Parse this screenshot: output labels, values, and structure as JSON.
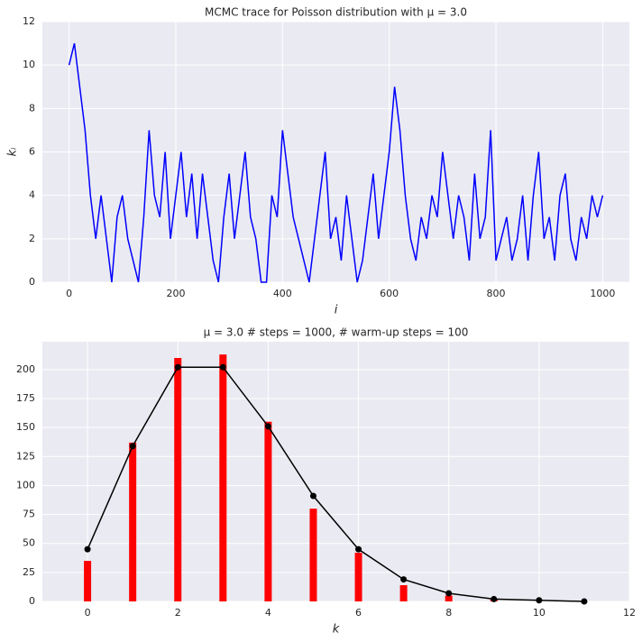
{
  "chart_data": [
    {
      "type": "line",
      "title": "MCMC trace for Poisson distribution with μ = 3.0",
      "x_label": "i",
      "y_label": "kᵢ",
      "color": "#0000ff",
      "x": [
        0,
        10,
        20,
        30,
        40,
        50,
        60,
        70,
        80,
        90,
        100,
        110,
        120,
        130,
        140,
        150,
        160,
        170,
        180,
        190,
        200,
        210,
        220,
        230,
        240,
        250,
        260,
        270,
        280,
        290,
        300,
        310,
        320,
        330,
        340,
        350,
        360,
        370,
        380,
        390,
        400,
        410,
        420,
        430,
        440,
        450,
        460,
        470,
        480,
        490,
        500,
        510,
        520,
        530,
        540,
        550,
        560,
        570,
        580,
        590,
        600,
        610,
        620,
        630,
        640,
        650,
        660,
        670,
        680,
        690,
        700,
        710,
        720,
        730,
        740,
        750,
        760,
        770,
        780,
        790,
        800,
        810,
        820,
        830,
        840,
        850,
        860,
        870,
        880,
        890,
        900,
        910,
        920,
        930,
        940,
        950,
        960,
        970,
        980,
        990,
        1000
      ],
      "values": [
        10,
        11,
        9,
        7,
        4,
        2,
        4,
        2,
        0,
        3,
        4,
        2,
        1,
        0,
        3,
        7,
        4,
        3,
        6,
        2,
        4,
        6,
        3,
        5,
        2,
        5,
        3,
        1,
        0,
        3,
        5,
        2,
        4,
        6,
        3,
        2,
        0,
        0,
        4,
        3,
        7,
        5,
        3,
        2,
        1,
        0,
        2,
        4,
        6,
        2,
        3,
        1,
        4,
        2,
        0,
        1,
        3,
        5,
        2,
        4,
        6,
        9,
        7,
        4,
        2,
        1,
        3,
        2,
        4,
        3,
        6,
        4,
        2,
        4,
        3,
        1,
        5,
        2,
        3,
        7,
        1,
        2,
        3,
        1,
        2,
        4,
        1,
        4,
        6,
        2,
        3,
        1,
        4,
        5,
        2,
        1,
        3,
        2,
        4,
        3,
        4
      ],
      "xlim": [
        -50,
        1050
      ],
      "xticks": [
        0,
        200,
        400,
        600,
        800,
        1000
      ],
      "ylim": [
        0,
        12
      ],
      "yticks": [
        0,
        2,
        4,
        6,
        8,
        10,
        12
      ],
      "grid": true
    },
    {
      "type": "bar",
      "title": "μ = 3.0  # steps = 1000, # warm-up steps = 100",
      "x_label": "k",
      "x": [
        0,
        1,
        2,
        3,
        4,
        5,
        6,
        7,
        8,
        9,
        10,
        11
      ],
      "series": [
        {
          "type": "bar",
          "color": "#ff0000",
          "values": [
            35,
            137,
            210,
            213,
            155,
            80,
            42,
            14,
            5,
            2,
            0,
            0
          ]
        },
        {
          "type": "line",
          "color": "#000000",
          "values": [
            45,
            134,
            202,
            202,
            151,
            91,
            45,
            19,
            7,
            2,
            1,
            0
          ]
        }
      ],
      "xlim": [
        -1,
        12
      ],
      "xticks": [
        0,
        2,
        4,
        6,
        8,
        10,
        12
      ],
      "ylim": [
        0,
        224
      ],
      "yticks": [
        0,
        25,
        50,
        75,
        100,
        125,
        150,
        175,
        200
      ],
      "grid": true
    }
  ]
}
